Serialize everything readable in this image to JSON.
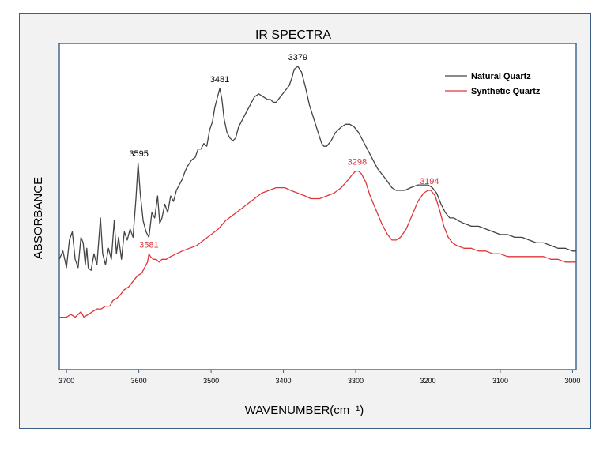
{
  "chart_data": {
    "type": "line",
    "title": "IR SPECTRA",
    "xlabel": "WAVENUMBER(cm⁻¹)",
    "ylabel": "ABSORBANCE",
    "xlim": [
      3710,
      2995
    ],
    "ylim": [
      0,
      1
    ],
    "x_ticks": [
      3700,
      3600,
      3500,
      3400,
      3300,
      3200,
      3100,
      3000
    ],
    "legend_position": "top-right",
    "series": [
      {
        "name": "Natural Quartz",
        "color": "#444444",
        "points": [
          [
            3710,
            0.3
          ],
          [
            3705,
            0.33
          ],
          [
            3700,
            0.27
          ],
          [
            3696,
            0.37
          ],
          [
            3692,
            0.4
          ],
          [
            3688,
            0.3
          ],
          [
            3684,
            0.27
          ],
          [
            3680,
            0.38
          ],
          [
            3677,
            0.36
          ],
          [
            3674,
            0.28
          ],
          [
            3672,
            0.34
          ],
          [
            3670,
            0.27
          ],
          [
            3666,
            0.26
          ],
          [
            3662,
            0.32
          ],
          [
            3658,
            0.28
          ],
          [
            3653,
            0.45
          ],
          [
            3650,
            0.32
          ],
          [
            3646,
            0.28
          ],
          [
            3642,
            0.34
          ],
          [
            3638,
            0.3
          ],
          [
            3634,
            0.44
          ],
          [
            3631,
            0.32
          ],
          [
            3628,
            0.38
          ],
          [
            3624,
            0.3
          ],
          [
            3620,
            0.4
          ],
          [
            3616,
            0.37
          ],
          [
            3612,
            0.41
          ],
          [
            3608,
            0.38
          ],
          [
            3604,
            0.52
          ],
          [
            3601,
            0.65
          ],
          [
            3598,
            0.54
          ],
          [
            3594,
            0.44
          ],
          [
            3590,
            0.4
          ],
          [
            3586,
            0.38
          ],
          [
            3582,
            0.47
          ],
          [
            3578,
            0.45
          ],
          [
            3574,
            0.53
          ],
          [
            3571,
            0.43
          ],
          [
            3568,
            0.45
          ],
          [
            3564,
            0.5
          ],
          [
            3560,
            0.47
          ],
          [
            3556,
            0.53
          ],
          [
            3552,
            0.51
          ],
          [
            3548,
            0.55
          ],
          [
            3544,
            0.57
          ],
          [
            3540,
            0.59
          ],
          [
            3536,
            0.62
          ],
          [
            3532,
            0.64
          ],
          [
            3527,
            0.66
          ],
          [
            3522,
            0.67
          ],
          [
            3518,
            0.7
          ],
          [
            3514,
            0.7
          ],
          [
            3510,
            0.72
          ],
          [
            3506,
            0.71
          ],
          [
            3502,
            0.77
          ],
          [
            3498,
            0.8
          ],
          [
            3495,
            0.85
          ],
          [
            3491,
            0.89
          ],
          [
            3488,
            0.92
          ],
          [
            3485,
            0.88
          ],
          [
            3482,
            0.81
          ],
          [
            3478,
            0.76
          ],
          [
            3474,
            0.74
          ],
          [
            3470,
            0.73
          ],
          [
            3466,
            0.74
          ],
          [
            3462,
            0.78
          ],
          [
            3456,
            0.81
          ],
          [
            3450,
            0.84
          ],
          [
            3446,
            0.86
          ],
          [
            3440,
            0.89
          ],
          [
            3434,
            0.9
          ],
          [
            3428,
            0.89
          ],
          [
            3422,
            0.88
          ],
          [
            3418,
            0.88
          ],
          [
            3414,
            0.87
          ],
          [
            3410,
            0.87
          ],
          [
            3404,
            0.89
          ],
          [
            3398,
            0.91
          ],
          [
            3392,
            0.93
          ],
          [
            3388,
            0.96
          ],
          [
            3385,
            0.99
          ],
          [
            3380,
            1.0
          ],
          [
            3375,
            0.98
          ],
          [
            3370,
            0.93
          ],
          [
            3364,
            0.86
          ],
          [
            3358,
            0.81
          ],
          [
            3352,
            0.76
          ],
          [
            3347,
            0.72
          ],
          [
            3344,
            0.71
          ],
          [
            3340,
            0.71
          ],
          [
            3334,
            0.73
          ],
          [
            3328,
            0.76
          ],
          [
            3320,
            0.78
          ],
          [
            3314,
            0.79
          ],
          [
            3308,
            0.79
          ],
          [
            3302,
            0.78
          ],
          [
            3296,
            0.76
          ],
          [
            3290,
            0.73
          ],
          [
            3282,
            0.69
          ],
          [
            3276,
            0.66
          ],
          [
            3270,
            0.63
          ],
          [
            3264,
            0.61
          ],
          [
            3258,
            0.59
          ],
          [
            3250,
            0.56
          ],
          [
            3244,
            0.55
          ],
          [
            3238,
            0.55
          ],
          [
            3232,
            0.55
          ],
          [
            3224,
            0.56
          ],
          [
            3214,
            0.57
          ],
          [
            3206,
            0.57
          ],
          [
            3200,
            0.57
          ],
          [
            3194,
            0.56
          ],
          [
            3188,
            0.54
          ],
          [
            3182,
            0.5
          ],
          [
            3176,
            0.47
          ],
          [
            3170,
            0.45
          ],
          [
            3164,
            0.45
          ],
          [
            3158,
            0.44
          ],
          [
            3150,
            0.43
          ],
          [
            3140,
            0.42
          ],
          [
            3130,
            0.42
          ],
          [
            3120,
            0.41
          ],
          [
            3110,
            0.4
          ],
          [
            3100,
            0.39
          ],
          [
            3090,
            0.39
          ],
          [
            3080,
            0.38
          ],
          [
            3070,
            0.38
          ],
          [
            3060,
            0.37
          ],
          [
            3050,
            0.36
          ],
          [
            3040,
            0.36
          ],
          [
            3030,
            0.35
          ],
          [
            3020,
            0.34
          ],
          [
            3010,
            0.34
          ],
          [
            3000,
            0.33
          ],
          [
            2995,
            0.33
          ]
        ]
      },
      {
        "name": "Synthetic Quartz",
        "color": "#e0353a",
        "points": [
          [
            3710,
            0.09
          ],
          [
            3705,
            0.09
          ],
          [
            3700,
            0.09
          ],
          [
            3694,
            0.1
          ],
          [
            3688,
            0.09
          ],
          [
            3684,
            0.1
          ],
          [
            3680,
            0.11
          ],
          [
            3676,
            0.09
          ],
          [
            3670,
            0.1
          ],
          [
            3664,
            0.11
          ],
          [
            3658,
            0.12
          ],
          [
            3652,
            0.12
          ],
          [
            3646,
            0.13
          ],
          [
            3640,
            0.13
          ],
          [
            3636,
            0.15
          ],
          [
            3630,
            0.16
          ],
          [
            3626,
            0.17
          ],
          [
            3620,
            0.19
          ],
          [
            3614,
            0.2
          ],
          [
            3608,
            0.22
          ],
          [
            3602,
            0.24
          ],
          [
            3596,
            0.25
          ],
          [
            3592,
            0.27
          ],
          [
            3588,
            0.29
          ],
          [
            3586,
            0.32
          ],
          [
            3584,
            0.31
          ],
          [
            3580,
            0.3
          ],
          [
            3576,
            0.3
          ],
          [
            3572,
            0.29
          ],
          [
            3568,
            0.3
          ],
          [
            3562,
            0.3
          ],
          [
            3556,
            0.31
          ],
          [
            3548,
            0.32
          ],
          [
            3540,
            0.33
          ],
          [
            3530,
            0.34
          ],
          [
            3520,
            0.35
          ],
          [
            3510,
            0.37
          ],
          [
            3500,
            0.39
          ],
          [
            3490,
            0.41
          ],
          [
            3480,
            0.44
          ],
          [
            3470,
            0.46
          ],
          [
            3460,
            0.48
          ],
          [
            3450,
            0.5
          ],
          [
            3440,
            0.52
          ],
          [
            3430,
            0.54
          ],
          [
            3420,
            0.55
          ],
          [
            3410,
            0.56
          ],
          [
            3404,
            0.56
          ],
          [
            3398,
            0.56
          ],
          [
            3390,
            0.55
          ],
          [
            3380,
            0.54
          ],
          [
            3370,
            0.53
          ],
          [
            3362,
            0.52
          ],
          [
            3356,
            0.52
          ],
          [
            3350,
            0.52
          ],
          [
            3340,
            0.53
          ],
          [
            3330,
            0.54
          ],
          [
            3320,
            0.56
          ],
          [
            3310,
            0.59
          ],
          [
            3304,
            0.61
          ],
          [
            3300,
            0.62
          ],
          [
            3296,
            0.62
          ],
          [
            3292,
            0.61
          ],
          [
            3286,
            0.58
          ],
          [
            3280,
            0.53
          ],
          [
            3272,
            0.48
          ],
          [
            3264,
            0.43
          ],
          [
            3256,
            0.39
          ],
          [
            3250,
            0.37
          ],
          [
            3244,
            0.37
          ],
          [
            3238,
            0.38
          ],
          [
            3230,
            0.41
          ],
          [
            3222,
            0.46
          ],
          [
            3214,
            0.51
          ],
          [
            3206,
            0.54
          ],
          [
            3200,
            0.55
          ],
          [
            3196,
            0.55
          ],
          [
            3190,
            0.53
          ],
          [
            3184,
            0.48
          ],
          [
            3178,
            0.42
          ],
          [
            3172,
            0.38
          ],
          [
            3166,
            0.36
          ],
          [
            3160,
            0.35
          ],
          [
            3150,
            0.34
          ],
          [
            3140,
            0.34
          ],
          [
            3130,
            0.33
          ],
          [
            3120,
            0.33
          ],
          [
            3110,
            0.32
          ],
          [
            3100,
            0.32
          ],
          [
            3090,
            0.31
          ],
          [
            3080,
            0.31
          ],
          [
            3070,
            0.31
          ],
          [
            3060,
            0.31
          ],
          [
            3050,
            0.31
          ],
          [
            3040,
            0.31
          ],
          [
            3030,
            0.3
          ],
          [
            3020,
            0.3
          ],
          [
            3010,
            0.29
          ],
          [
            3000,
            0.29
          ],
          [
            2995,
            0.29
          ]
        ]
      }
    ],
    "annotations": [
      {
        "text": "3595",
        "x": 3600,
        "y": 0.65,
        "series": 0
      },
      {
        "text": "3481",
        "x": 3488,
        "y": 0.92,
        "series": 0
      },
      {
        "text": "3379",
        "x": 3380,
        "y": 1.0,
        "series": 0
      },
      {
        "text": "3581",
        "x": 3586,
        "y": 0.32,
        "series": 1
      },
      {
        "text": "3298",
        "x": 3298,
        "y": 0.62,
        "series": 1
      },
      {
        "text": "3194",
        "x": 3198,
        "y": 0.55,
        "series": 1
      }
    ]
  }
}
